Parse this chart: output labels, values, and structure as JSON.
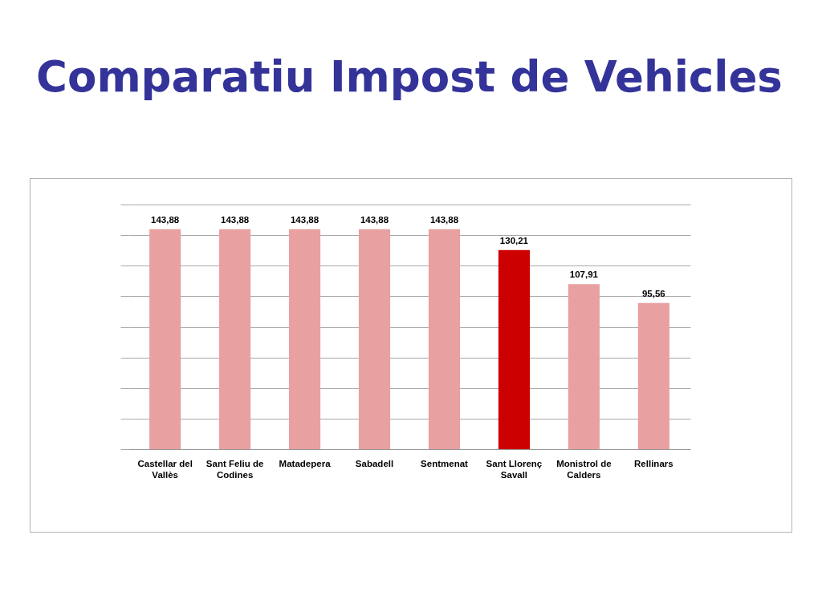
{
  "chart_data": {
    "type": "bar",
    "title": "Comparatiu Impost de Vehicles",
    "categories": [
      "Castellar del Vallès",
      "Sant Feliu de Codines",
      "Matadepera",
      "Sabadell",
      "Sentmenat",
      "Sant Llorenç Savall",
      "Monistrol de Calders",
      "Rellinars"
    ],
    "values": [
      143.88,
      143.88,
      143.88,
      143.88,
      143.88,
      130.21,
      107.91,
      95.56
    ],
    "colors": [
      "#e8a0a0",
      "#e8a0a0",
      "#e8a0a0",
      "#e8a0a0",
      "#e8a0a0",
      "#cc0000",
      "#e8a0a0",
      "#e8a0a0"
    ],
    "value_labels": [
      "143,88",
      "143,88",
      "143,88",
      "143,88",
      "143,88",
      "130,21",
      "107,91",
      "95,56"
    ],
    "ylim": [
      0,
      160
    ],
    "yticks": [
      {
        "value": 0,
        "label": null
      },
      {
        "value": 20,
        "label": null
      },
      {
        "value": 40,
        "label": null
      },
      {
        "value": 60,
        "label": null
      },
      {
        "value": 80,
        "label": null
      },
      {
        "value": 100,
        "label": null
      },
      {
        "value": 120,
        "label": null
      },
      {
        "value": 140,
        "label": null
      },
      {
        "value": 160,
        "label": null
      }
    ],
    "grid": "y",
    "tick_labels": "x"
  }
}
